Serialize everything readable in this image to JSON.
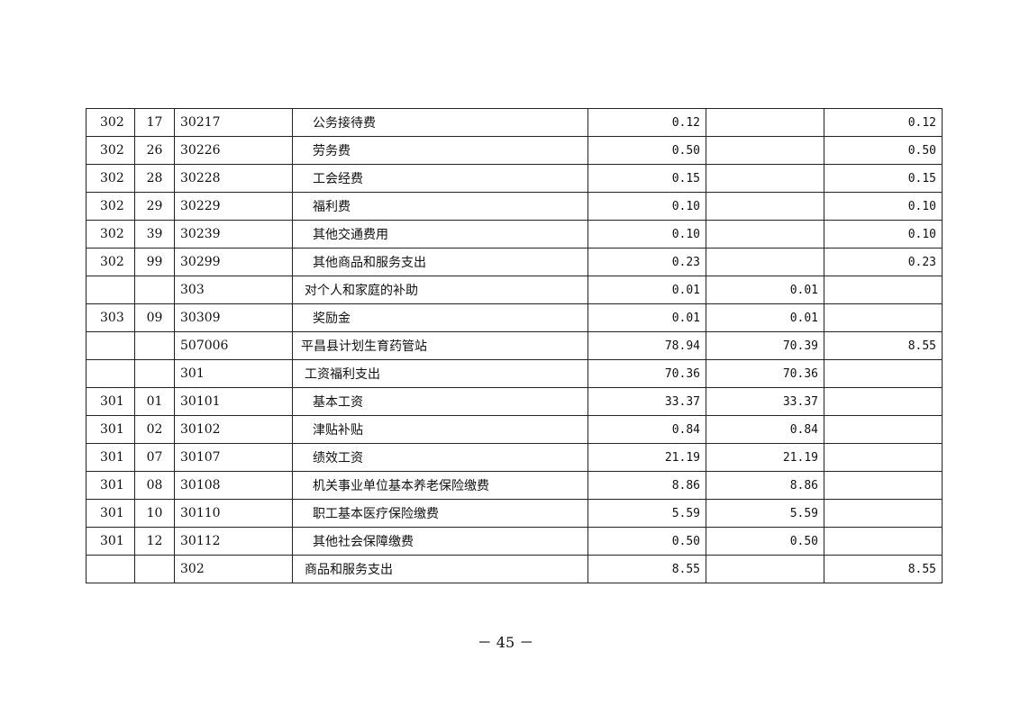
{
  "table": {
    "rows": [
      {
        "class": "302",
        "item": "17",
        "code": "30217",
        "name": "公务接待费",
        "level": 3,
        "total": "0.12",
        "basic": "",
        "project": "0.12"
      },
      {
        "class": "302",
        "item": "26",
        "code": "30226",
        "name": "劳务费",
        "level": 3,
        "total": "0.50",
        "basic": "",
        "project": "0.50"
      },
      {
        "class": "302",
        "item": "28",
        "code": "30228",
        "name": "工会经费",
        "level": 3,
        "total": "0.15",
        "basic": "",
        "project": "0.15"
      },
      {
        "class": "302",
        "item": "29",
        "code": "30229",
        "name": "福利费",
        "level": 3,
        "total": "0.10",
        "basic": "",
        "project": "0.10"
      },
      {
        "class": "302",
        "item": "39",
        "code": "30239",
        "name": "其他交通费用",
        "level": 3,
        "total": "0.10",
        "basic": "",
        "project": "0.10"
      },
      {
        "class": "302",
        "item": "99",
        "code": "30299",
        "name": "其他商品和服务支出",
        "level": 3,
        "total": "0.23",
        "basic": "",
        "project": "0.23"
      },
      {
        "class": "",
        "item": "",
        "code": "303",
        "name": "对个人和家庭的补助",
        "level": 2,
        "total": "0.01",
        "basic": "0.01",
        "project": ""
      },
      {
        "class": "303",
        "item": "09",
        "code": "30309",
        "name": "奖励金",
        "level": 3,
        "total": "0.01",
        "basic": "0.01",
        "project": ""
      },
      {
        "class": "",
        "item": "",
        "code": "507006",
        "name": "平昌县计划生育药管站",
        "level": 1,
        "total": "78.94",
        "basic": "70.39",
        "project": "8.55"
      },
      {
        "class": "",
        "item": "",
        "code": "301",
        "name": "工资福利支出",
        "level": 2,
        "total": "70.36",
        "basic": "70.36",
        "project": ""
      },
      {
        "class": "301",
        "item": "01",
        "code": "30101",
        "name": "基本工资",
        "level": 3,
        "total": "33.37",
        "basic": "33.37",
        "project": ""
      },
      {
        "class": "301",
        "item": "02",
        "code": "30102",
        "name": "津贴补贴",
        "level": 3,
        "total": "0.84",
        "basic": "0.84",
        "project": ""
      },
      {
        "class": "301",
        "item": "07",
        "code": "30107",
        "name": "绩效工资",
        "level": 3,
        "total": "21.19",
        "basic": "21.19",
        "project": ""
      },
      {
        "class": "301",
        "item": "08",
        "code": "30108",
        "name": "机关事业单位基本养老保险缴费",
        "level": 3,
        "total": "8.86",
        "basic": "8.86",
        "project": ""
      },
      {
        "class": "301",
        "item": "10",
        "code": "30110",
        "name": "职工基本医疗保险缴费",
        "level": 3,
        "total": "5.59",
        "basic": "5.59",
        "project": ""
      },
      {
        "class": "301",
        "item": "12",
        "code": "30112",
        "name": "其他社会保障缴费",
        "level": 3,
        "total": "0.50",
        "basic": "0.50",
        "project": ""
      },
      {
        "class": "",
        "item": "",
        "code": "302",
        "name": "商品和服务支出",
        "level": 2,
        "total": "8.55",
        "basic": "",
        "project": "8.55"
      }
    ]
  },
  "footer": {
    "page_number": "－ 45 －"
  }
}
